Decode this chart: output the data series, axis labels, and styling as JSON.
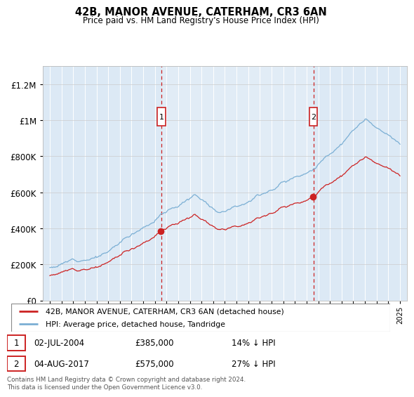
{
  "title": "42B, MANOR AVENUE, CATERHAM, CR3 6AN",
  "subtitle": "Price paid vs. HM Land Registry's House Price Index (HPI)",
  "hpi_label": "HPI: Average price, detached house, Tandridge",
  "price_label": "42B, MANOR AVENUE, CATERHAM, CR3 6AN (detached house)",
  "sale1_date": "02-JUL-2004",
  "sale1_price": 385000,
  "sale1_pct": "14% ↓ HPI",
  "sale2_date": "04-AUG-2017",
  "sale2_price": 575000,
  "sale2_pct": "27% ↓ HPI",
  "footer": "Contains HM Land Registry data © Crown copyright and database right 2024.\nThis data is licensed under the Open Government Licence v3.0.",
  "hpi_color": "#7bafd4",
  "price_color": "#cc2222",
  "vline_color": "#cc2222",
  "bg_color": "#dce9f5",
  "bg_color2": "#e6f0f8",
  "ylim": [
    0,
    1300000
  ],
  "yticks": [
    0,
    200000,
    400000,
    600000,
    800000,
    1000000,
    1200000
  ],
  "ytick_labels": [
    "£0",
    "£200K",
    "£400K",
    "£600K",
    "£800K",
    "£1M",
    "£1.2M"
  ],
  "sale1_t": 2004.55,
  "sale2_t": 2017.58,
  "xstart": 1995.0,
  "xend": 2025.0
}
